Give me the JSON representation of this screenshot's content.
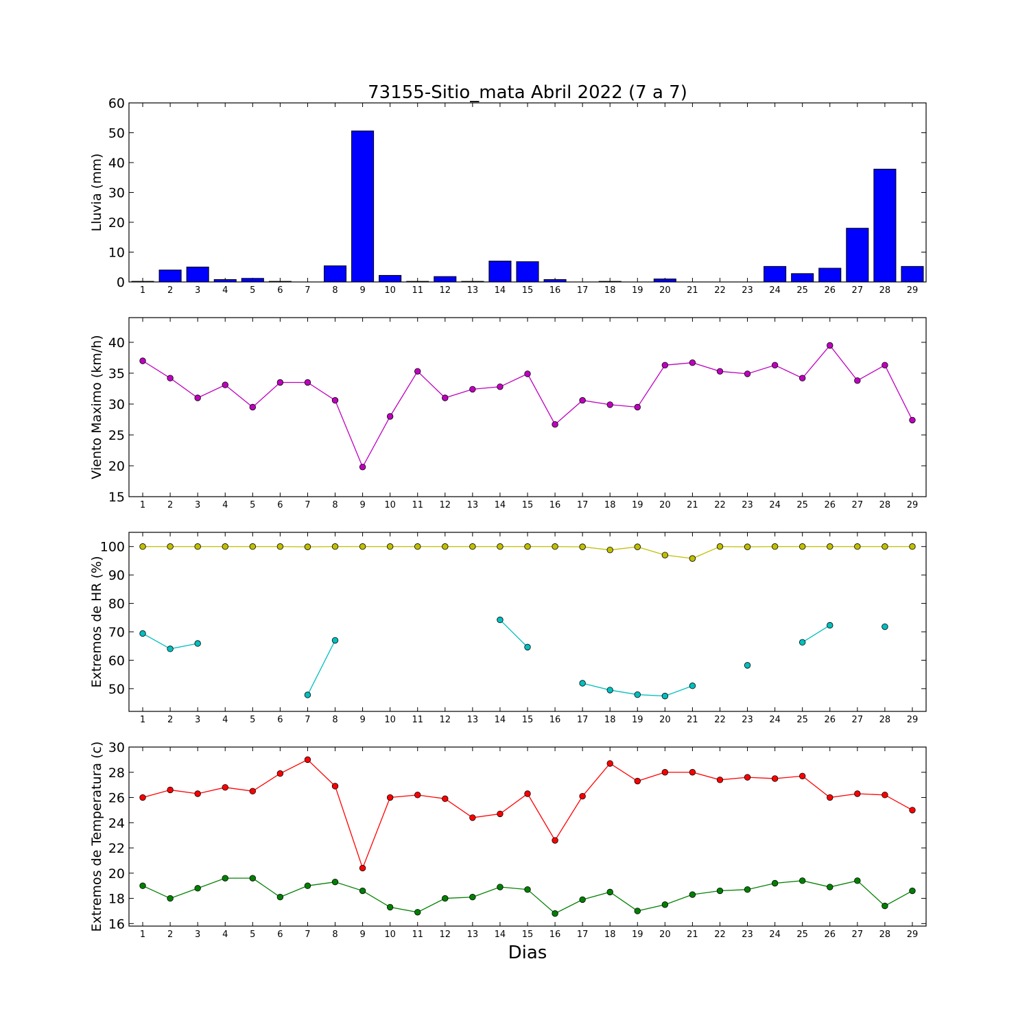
{
  "title": "73155-Sitio_mata Abril 2022  (7 a 7)",
  "xlabel": "Dias",
  "colors": {
    "rain": "#0000ff",
    "wind": "#bf00bf",
    "hr_max": "#bfbf00",
    "hr_min": "#00bfbf",
    "temp_max": "#ff0000",
    "temp_min": "#008000"
  },
  "chart_data": [
    {
      "type": "bar",
      "ylabel": "Lluvia (mm)",
      "ylim": [
        0,
        60
      ],
      "yticks": [
        0,
        10,
        20,
        30,
        40,
        50,
        60
      ],
      "categories": [
        1,
        2,
        3,
        4,
        5,
        6,
        7,
        8,
        9,
        10,
        11,
        12,
        13,
        14,
        15,
        16,
        17,
        18,
        19,
        20,
        21,
        22,
        23,
        24,
        25,
        26,
        27,
        28,
        29
      ],
      "series": [
        {
          "values": [
            0.2,
            4.0,
            5.0,
            0.8,
            1.2,
            0.2,
            0,
            5.4,
            50.6,
            2.2,
            0.2,
            1.8,
            0.2,
            7.0,
            6.8,
            0.8,
            0,
            0.2,
            0,
            1.0,
            0,
            0,
            0,
            5.2,
            2.8,
            4.6,
            18.0,
            37.8,
            5.2
          ]
        }
      ]
    },
    {
      "type": "line",
      "ylabel": "Viento Maximo (km/h)",
      "ylim": [
        15,
        44
      ],
      "yticks": [
        15,
        20,
        25,
        30,
        35,
        40
      ],
      "x": [
        1,
        2,
        3,
        4,
        5,
        6,
        7,
        8,
        9,
        10,
        11,
        12,
        13,
        14,
        15,
        16,
        17,
        18,
        19,
        20,
        21,
        22,
        23,
        24,
        25,
        26,
        27,
        28,
        29
      ],
      "series": [
        {
          "values": [
            37.0,
            34.2,
            31.0,
            33.1,
            29.5,
            33.5,
            33.5,
            30.6,
            19.8,
            28.0,
            35.3,
            31.0,
            32.4,
            32.8,
            34.9,
            26.7,
            30.6,
            29.9,
            29.5,
            36.3,
            36.7,
            35.3,
            34.9,
            36.3,
            34.2,
            39.5,
            33.8,
            36.3,
            27.4
          ]
        }
      ]
    },
    {
      "type": "line",
      "ylabel": "Extremos de HR (%)",
      "ylim": [
        42,
        105
      ],
      "yticks": [
        50,
        60,
        70,
        80,
        90,
        100
      ],
      "x": [
        1,
        2,
        3,
        4,
        5,
        6,
        7,
        8,
        9,
        10,
        11,
        12,
        13,
        14,
        15,
        16,
        17,
        18,
        19,
        20,
        21,
        22,
        23,
        24,
        25,
        26,
        27,
        28,
        29
      ],
      "series": [
        {
          "values": [
            100,
            100,
            100,
            100,
            100,
            100,
            99.9,
            100,
            100,
            100,
            100,
            100,
            100,
            100,
            100,
            100,
            99.9,
            98.8,
            99.9,
            97.0,
            95.8,
            100,
            99.9,
            100,
            100,
            100,
            100,
            100,
            100
          ]
        },
        {
          "values": [
            69.4,
            64.0,
            65.9,
            null,
            null,
            null,
            47.8,
            67.0,
            null,
            null,
            null,
            null,
            null,
            74.2,
            64.6,
            null,
            51.9,
            49.5,
            47.9,
            47.4,
            51.0,
            null,
            58.2,
            null,
            66.3,
            72.3,
            null,
            71.8,
            null
          ]
        }
      ]
    },
    {
      "type": "line",
      "ylabel": "Extremos de Temperatura (c)",
      "ylim": [
        15.8,
        30
      ],
      "yticks": [
        16,
        18,
        20,
        22,
        24,
        26,
        28,
        30
      ],
      "x": [
        1,
        2,
        3,
        4,
        5,
        6,
        7,
        8,
        9,
        10,
        11,
        12,
        13,
        14,
        15,
        16,
        17,
        18,
        19,
        20,
        21,
        22,
        23,
        24,
        25,
        26,
        27,
        28,
        29
      ],
      "series": [
        {
          "values": [
            26.0,
            26.6,
            26.3,
            26.8,
            26.5,
            27.9,
            29.0,
            26.9,
            20.4,
            26.0,
            26.2,
            25.9,
            24.4,
            24.7,
            26.3,
            22.6,
            26.1,
            28.7,
            27.3,
            28.0,
            28.0,
            27.4,
            27.6,
            27.5,
            27.7,
            26.0,
            26.3,
            26.2,
            25.0
          ]
        },
        {
          "values": [
            19.0,
            18.0,
            18.8,
            19.6,
            19.6,
            18.1,
            19.0,
            19.3,
            18.6,
            17.3,
            16.9,
            18.0,
            18.1,
            18.9,
            18.7,
            16.8,
            17.9,
            18.5,
            17.0,
            17.5,
            18.3,
            18.6,
            18.7,
            19.2,
            19.4,
            18.9,
            19.4,
            17.4,
            18.6
          ]
        }
      ]
    }
  ]
}
